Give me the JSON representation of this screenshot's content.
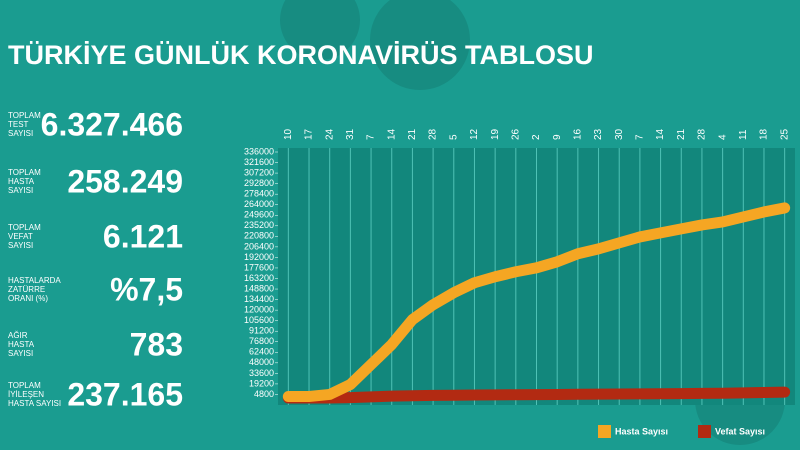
{
  "header": {
    "title": "TÜRKİYE GÜNLÜK KORONAVİRÜS TABLOSU"
  },
  "stats": [
    {
      "label_lines": [
        "TOPLAM",
        "TEST",
        "SAYISI"
      ],
      "value": "6.327.466"
    },
    {
      "label_lines": [
        "TOPLAM",
        "HASTA",
        "SAYISI"
      ],
      "value": "258.249"
    },
    {
      "label_lines": [
        "TOPLAM",
        "VEFAT",
        "SAYISI"
      ],
      "value": "6.121"
    },
    {
      "label_lines": [
        "HASTALARDA",
        "ZATÜRRE",
        "ORANI (%)"
      ],
      "value": "%7,5"
    },
    {
      "label_lines": [
        "AĞIR",
        "HASTA",
        "SAYISI"
      ],
      "value": "783"
    },
    {
      "label_lines": [
        "TOPLAM",
        "İYİLEŞEN",
        "HASTA SAYISI"
      ],
      "value": "237.165"
    }
  ],
  "chart_data": {
    "type": "line",
    "categories": [
      "10",
      "17",
      "24",
      "31",
      "7",
      "14",
      "21",
      "28",
      "5",
      "12",
      "19",
      "26",
      "2",
      "9",
      "16",
      "23",
      "30",
      "7",
      "14",
      "21",
      "28",
      "4",
      "11",
      "18",
      "25"
    ],
    "series": [
      {
        "name": "Hasta Sayısı",
        "color": "#f5a623",
        "values": [
          2000,
          2000,
          4800,
          18400,
          45600,
          73000,
          107000,
          127400,
          143800,
          157400,
          165600,
          172400,
          177800,
          186000,
          197000,
          203700,
          211900,
          220000,
          225500,
          231000,
          236400,
          240500,
          247300,
          254100,
          259600
        ]
      },
      {
        "name": "Vefat Sayısı",
        "color": "#b22a12",
        "values": [
          0,
          0,
          0,
          500,
          1500,
          2500,
          3000,
          3500,
          3800,
          4000,
          4200,
          4400,
          4600,
          4800,
          5000,
          5200,
          5400,
          5600,
          5800,
          6000,
          6200,
          6500,
          7000,
          7500,
          8000
        ]
      }
    ],
    "ylim": [
      -9600,
      336000
    ],
    "yticks": [
      4800,
      19200,
      33600,
      48000,
      62400,
      76800,
      91200,
      105600,
      120000,
      134400,
      148800,
      163200,
      177600,
      192000,
      206400,
      220800,
      235200,
      249600,
      264000,
      278400,
      292800,
      307200,
      321600,
      336000
    ],
    "grid": true,
    "legend": "bottom-right"
  }
}
